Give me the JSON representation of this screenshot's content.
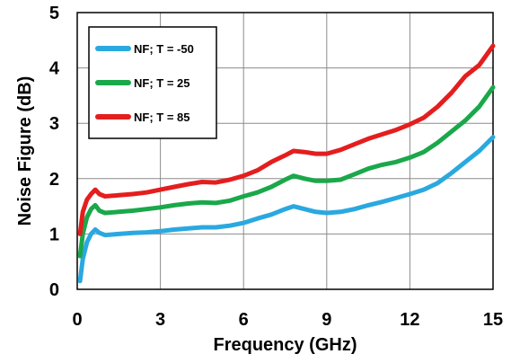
{
  "chart_data": {
    "type": "line",
    "title": "",
    "xlabel": "Frequency (GHz)",
    "ylabel": "Noise Figure (dB)",
    "xlim": [
      0,
      15
    ],
    "ylim": [
      0,
      5
    ],
    "xticks": [
      0,
      3,
      6,
      9,
      12,
      15
    ],
    "yticks": [
      0,
      1,
      2,
      3,
      4,
      5
    ],
    "xtick_labels": [
      "0",
      "3",
      "6",
      "9",
      "12",
      "15"
    ],
    "ytick_labels": [
      "0",
      "1",
      "2",
      "3",
      "4",
      "5"
    ],
    "grid": true,
    "legend_position": "top-left",
    "series": [
      {
        "name": "NF; T = -50",
        "color": "#2aa8e0",
        "x": [
          0.1,
          0.2,
          0.35,
          0.5,
          0.65,
          0.8,
          1.0,
          1.5,
          2.0,
          2.5,
          3.0,
          3.5,
          4.0,
          4.5,
          5.0,
          5.5,
          6.0,
          6.5,
          7.0,
          7.5,
          7.8,
          8.2,
          8.6,
          9.0,
          9.5,
          10.0,
          10.5,
          11.0,
          11.5,
          12.0,
          12.5,
          13.0,
          13.5,
          14.0,
          14.5,
          15.0
        ],
        "y": [
          0.15,
          0.55,
          0.85,
          1.0,
          1.08,
          1.02,
          0.98,
          1.0,
          1.02,
          1.03,
          1.05,
          1.08,
          1.1,
          1.12,
          1.12,
          1.15,
          1.2,
          1.28,
          1.35,
          1.45,
          1.5,
          1.45,
          1.4,
          1.38,
          1.4,
          1.45,
          1.52,
          1.58,
          1.65,
          1.72,
          1.8,
          1.92,
          2.1,
          2.3,
          2.5,
          2.75
        ]
      },
      {
        "name": "NF; T = 25",
        "color": "#1aa84a",
        "x": [
          0.1,
          0.2,
          0.35,
          0.5,
          0.65,
          0.8,
          1.0,
          1.5,
          2.0,
          2.5,
          3.0,
          3.5,
          4.0,
          4.5,
          5.0,
          5.5,
          6.0,
          6.5,
          7.0,
          7.5,
          7.8,
          8.2,
          8.6,
          9.0,
          9.5,
          10.0,
          10.5,
          11.0,
          11.5,
          12.0,
          12.5,
          13.0,
          13.5,
          14.0,
          14.5,
          15.0
        ],
        "y": [
          0.6,
          1.0,
          1.3,
          1.45,
          1.52,
          1.42,
          1.38,
          1.4,
          1.42,
          1.45,
          1.48,
          1.52,
          1.55,
          1.57,
          1.56,
          1.6,
          1.68,
          1.75,
          1.85,
          1.98,
          2.05,
          2.0,
          1.96,
          1.96,
          1.98,
          2.08,
          2.18,
          2.25,
          2.3,
          2.38,
          2.48,
          2.65,
          2.85,
          3.05,
          3.3,
          3.65
        ]
      },
      {
        "name": "NF; T = 85",
        "color": "#e41e1e",
        "x": [
          0.1,
          0.2,
          0.35,
          0.5,
          0.65,
          0.8,
          1.0,
          1.5,
          2.0,
          2.5,
          3.0,
          3.5,
          4.0,
          4.5,
          5.0,
          5.5,
          6.0,
          6.5,
          7.0,
          7.5,
          7.8,
          8.2,
          8.6,
          9.0,
          9.5,
          10.0,
          10.5,
          11.0,
          11.5,
          12.0,
          12.5,
          13.0,
          13.5,
          14.0,
          14.5,
          15.0
        ],
        "y": [
          1.0,
          1.4,
          1.62,
          1.72,
          1.8,
          1.72,
          1.68,
          1.7,
          1.72,
          1.75,
          1.8,
          1.85,
          1.9,
          1.94,
          1.93,
          1.98,
          2.05,
          2.15,
          2.3,
          2.42,
          2.5,
          2.48,
          2.45,
          2.45,
          2.52,
          2.62,
          2.72,
          2.8,
          2.88,
          2.98,
          3.1,
          3.3,
          3.55,
          3.85,
          4.05,
          4.4
        ]
      }
    ]
  }
}
